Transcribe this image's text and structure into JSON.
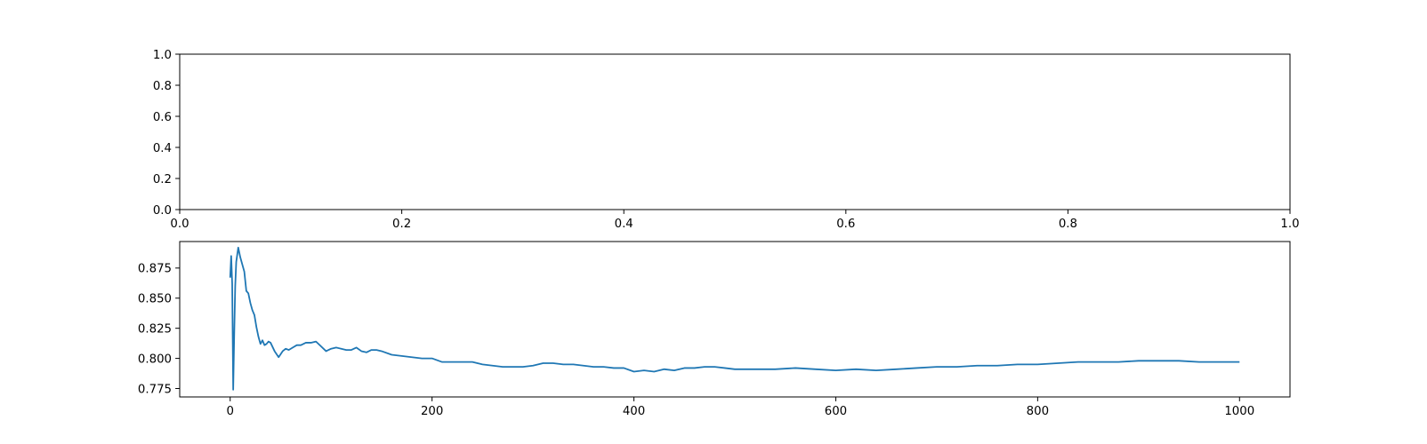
{
  "chart_data": [
    {
      "type": "line",
      "title": "",
      "xlabel": "",
      "ylabel": "",
      "xlim": [
        0.0,
        1.0
      ],
      "ylim": [
        0.0,
        1.0
      ],
      "xticks": [
        0.0,
        0.2,
        0.4,
        0.6,
        0.8,
        1.0
      ],
      "yticks": [
        0.0,
        0.2,
        0.4,
        0.6,
        0.8,
        1.0
      ],
      "xtick_labels": [
        "0.0",
        "0.2",
        "0.4",
        "0.6",
        "0.8",
        "1.0"
      ],
      "ytick_labels": [
        "0.0",
        "0.2",
        "0.4",
        "0.6",
        "0.8",
        "1.0"
      ],
      "grid": false,
      "series": []
    },
    {
      "type": "line",
      "title": "",
      "xlabel": "",
      "ylabel": "",
      "xlim": [
        -50,
        1050
      ],
      "ylim": [
        0.768,
        0.897
      ],
      "xticks": [
        0,
        200,
        400,
        600,
        800,
        1000
      ],
      "yticks": [
        0.775,
        0.8,
        0.825,
        0.85,
        0.875
      ],
      "xtick_labels": [
        "0",
        "200",
        "400",
        "600",
        "800",
        "1000"
      ],
      "ytick_labels": [
        "0.775",
        "0.800",
        "0.825",
        "0.850",
        "0.875"
      ],
      "grid": false,
      "series": [
        {
          "color": "#1f77b4",
          "x": [
            0,
            1,
            2,
            3,
            4,
            5,
            6,
            7,
            8,
            10,
            12,
            14,
            16,
            18,
            20,
            22,
            24,
            26,
            28,
            30,
            32,
            34,
            36,
            38,
            40,
            44,
            48,
            52,
            55,
            58,
            62,
            66,
            70,
            75,
            80,
            85,
            90,
            95,
            100,
            105,
            110,
            115,
            120,
            125,
            130,
            135,
            140,
            145,
            150,
            160,
            170,
            180,
            190,
            200,
            210,
            220,
            230,
            240,
            250,
            260,
            270,
            280,
            290,
            300,
            310,
            320,
            330,
            340,
            350,
            360,
            370,
            380,
            390,
            400,
            410,
            420,
            430,
            440,
            450,
            460,
            470,
            480,
            490,
            500,
            520,
            540,
            560,
            580,
            600,
            620,
            640,
            660,
            680,
            700,
            720,
            740,
            760,
            780,
            800,
            820,
            840,
            860,
            880,
            900,
            920,
            940,
            960,
            980,
            1000
          ],
          "y": [
            0.867,
            0.885,
            0.862,
            0.774,
            0.82,
            0.86,
            0.88,
            0.886,
            0.892,
            0.884,
            0.878,
            0.872,
            0.856,
            0.854,
            0.846,
            0.84,
            0.836,
            0.826,
            0.818,
            0.812,
            0.815,
            0.811,
            0.812,
            0.814,
            0.813,
            0.806,
            0.801,
            0.806,
            0.808,
            0.807,
            0.809,
            0.811,
            0.811,
            0.813,
            0.813,
            0.814,
            0.81,
            0.806,
            0.808,
            0.809,
            0.808,
            0.807,
            0.807,
            0.809,
            0.806,
            0.805,
            0.807,
            0.807,
            0.806,
            0.803,
            0.802,
            0.801,
            0.8,
            0.8,
            0.797,
            0.797,
            0.797,
            0.797,
            0.795,
            0.794,
            0.793,
            0.793,
            0.793,
            0.794,
            0.796,
            0.796,
            0.795,
            0.795,
            0.794,
            0.793,
            0.793,
            0.792,
            0.792,
            0.789,
            0.79,
            0.789,
            0.791,
            0.79,
            0.792,
            0.792,
            0.793,
            0.793,
            0.792,
            0.791,
            0.791,
            0.791,
            0.792,
            0.791,
            0.79,
            0.791,
            0.79,
            0.791,
            0.792,
            0.793,
            0.793,
            0.794,
            0.794,
            0.795,
            0.795,
            0.796,
            0.797,
            0.797,
            0.797,
            0.798,
            0.798,
            0.798,
            0.797,
            0.797,
            0.797
          ]
        }
      ]
    }
  ]
}
